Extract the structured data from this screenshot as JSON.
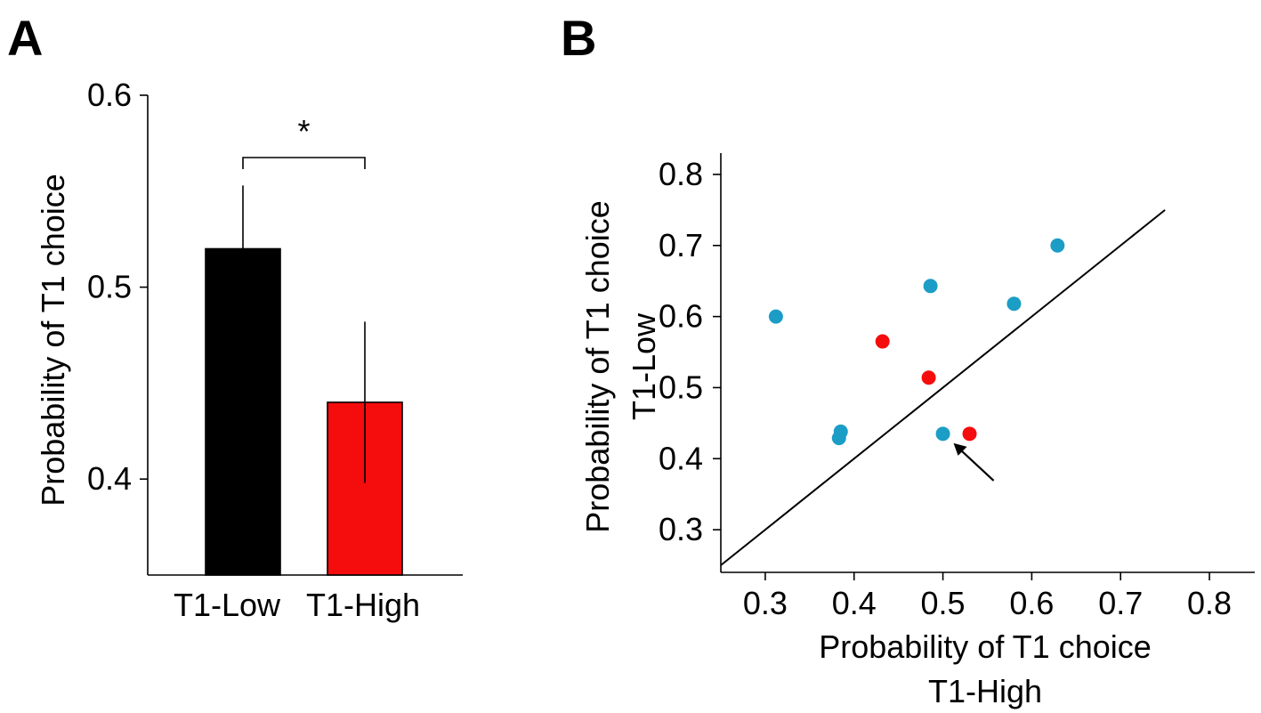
{
  "panels": {
    "a_letter": "A",
    "b_letter": "B"
  },
  "chart_data": [
    {
      "type": "bar",
      "panel": "A",
      "categories": [
        "T1-Low",
        "T1-High"
      ],
      "values": [
        0.52,
        0.44
      ],
      "errors": [
        0.033,
        0.042
      ],
      "colors": [
        "#000000",
        "#f50c0c"
      ],
      "ylabel": "Probability of T1 choice",
      "xlabel": "",
      "ylim": [
        0.35,
        0.6
      ],
      "yticks": [
        0.4,
        0.5,
        0.6
      ],
      "ytick_labels": [
        "0.4",
        "0.5",
        "0.6"
      ],
      "significance": {
        "between": [
          0,
          1
        ],
        "label": "*"
      },
      "grid": false
    },
    {
      "type": "scatter",
      "panel": "B",
      "xlabel_line1": "Probability of T1 choice",
      "xlabel_line2": "T1-High",
      "ylabel_line1": "Probability of T1 choice",
      "ylabel_line2": "T1-Low",
      "xlim": [
        0.25,
        0.83
      ],
      "ylim": [
        0.24,
        0.83
      ],
      "xticks": [
        0.3,
        0.4,
        0.5,
        0.6,
        0.7,
        0.8
      ],
      "xtick_labels": [
        "0.3",
        "0.4",
        "0.5",
        "0.6",
        "0.7",
        "0.8"
      ],
      "yticks": [
        0.3,
        0.4,
        0.5,
        0.6,
        0.7,
        0.8
      ],
      "ytick_labels": [
        "0.3",
        "0.4",
        "0.5",
        "0.6",
        "0.7",
        "0.8"
      ],
      "identity_line": {
        "from": [
          0.25,
          0.25
        ],
        "to": [
          0.75,
          0.75
        ]
      },
      "series": [
        {
          "color": "#1b9dc6",
          "points": [
            {
              "x": 0.312,
              "y": 0.6
            },
            {
              "x": 0.385,
              "y": 0.438
            },
            {
              "x": 0.383,
              "y": 0.429
            },
            {
              "x": 0.486,
              "y": 0.643
            },
            {
              "x": 0.5,
              "y": 0.435
            },
            {
              "x": 0.58,
              "y": 0.618
            },
            {
              "x": 0.629,
              "y": 0.7
            }
          ]
        },
        {
          "color": "#f50c0c",
          "points": [
            {
              "x": 0.432,
              "y": 0.565
            },
            {
              "x": 0.484,
              "y": 0.514
            },
            {
              "x": 0.53,
              "y": 0.435
            }
          ]
        }
      ],
      "arrow_target": {
        "x": 0.504,
        "y": 0.428
      },
      "grid": false
    }
  ]
}
